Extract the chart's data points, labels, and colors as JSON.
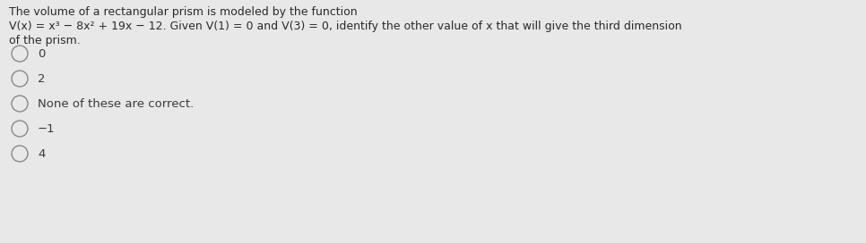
{
  "background_color": "#e8e8e8",
  "line1": "The volume of a rectangular prism is modeled by the function",
  "line2": "V(x) = x³ − 8x² + 19x − 12. Given V(1) = 0 and V(3) = 0, identify the other value of x that will give the third dimension",
  "line3": "of the prism.",
  "options": [
    "0",
    "2",
    "None of these are correct.",
    "−1",
    "4"
  ],
  "text_color": "#2a2a2a",
  "option_text_color": "#3a3a3a",
  "title_fontsize": 9.0,
  "option_fontsize": 9.5,
  "radio_color": "#888888",
  "radio_linewidth": 1.0
}
